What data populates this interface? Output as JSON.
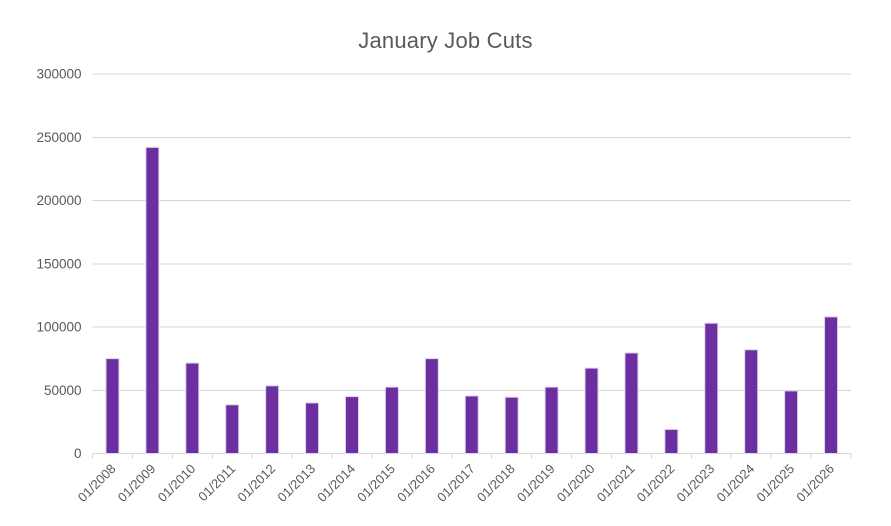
{
  "chart_data": {
    "type": "bar",
    "title": "January Job Cuts",
    "categories": [
      "01/2008",
      "01/2009",
      "01/2010",
      "01/2011",
      "01/2012",
      "01/2013",
      "01/2014",
      "01/2015",
      "01/2016",
      "01/2017",
      "01/2018",
      "01/2019",
      "01/2020",
      "01/2021",
      "01/2022",
      "01/2023",
      "01/2024",
      "01/2025",
      "01/2026"
    ],
    "values": [
      75000,
      242000,
      71500,
      38500,
      53500,
      40000,
      45000,
      52500,
      75000,
      45500,
      44500,
      52500,
      67500,
      79500,
      19000,
      103000,
      82000,
      49500,
      108000
    ],
    "series_name": "January Job Cuts",
    "xlabel": "",
    "ylabel": "",
    "ylim": [
      0,
      300000
    ],
    "ytick_step": 50000,
    "ytick_labels": [
      "0",
      "50000",
      "100000",
      "150000",
      "200000",
      "250000",
      "300000"
    ],
    "xtick_rotation_deg": 45,
    "grid": "horizontal",
    "legend": "none",
    "colors": {
      "bar_fill": "#6C2FA2",
      "bar_border": "#DCD5E6",
      "gridline": "#D6D6D6",
      "axis_line": "#D6D6D6",
      "tick": "#D6D6D6",
      "axis_text": "#595959",
      "title_text": "#595959",
      "background": "#FFFFFF"
    }
  }
}
